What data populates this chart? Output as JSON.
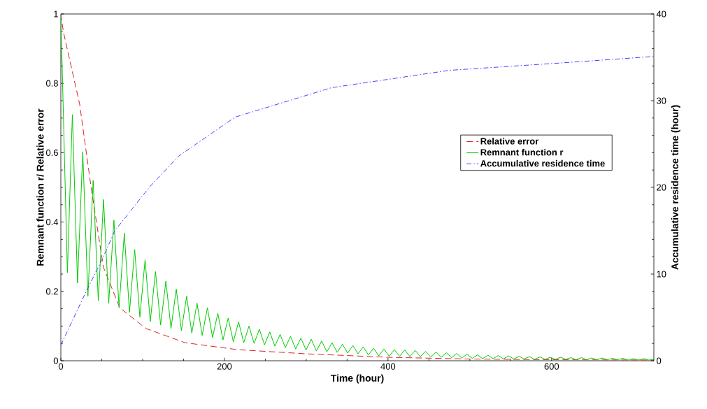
{
  "chart_data": {
    "type": "line",
    "xlabel": "Time (hour)",
    "ylabel": "Remnant function r/ Relative error",
    "y2label": "Accumulative residence time (hour)",
    "xlim": [
      0,
      725
    ],
    "xticks": [
      0,
      200,
      400,
      600
    ],
    "ylim": [
      0,
      1
    ],
    "yticks": [
      0,
      0.2,
      0.4,
      0.6,
      0.8,
      1
    ],
    "y2lim": [
      0,
      40
    ],
    "y2ticks": [
      0,
      10,
      20,
      30,
      40
    ],
    "legend": "right",
    "grid": false,
    "marker": "none",
    "series": [
      {
        "name": "Relative error",
        "color": "#dd2222",
        "line_style": "dashed",
        "x": [
          0,
          3,
          23,
          37,
          52,
          72,
          104,
          152,
          216,
          300,
          400,
          500,
          600,
          725
        ],
        "values": [
          1,
          0.95,
          0.74,
          0.5,
          0.27,
          0.153,
          0.093,
          0.052,
          0.032,
          0.02,
          0.01,
          0.005,
          0.003,
          0.002
        ]
      },
      {
        "name": "Remnant function r",
        "color": "#00cc00",
        "line_style": "solid",
        "x": [
          0,
          8,
          14.1,
          20.4,
          26.8,
          33.1,
          39.5,
          45.8,
          52.2,
          58.5,
          64.9,
          71.2,
          77.6,
          83.9,
          90.3,
          96.6,
          103,
          109.3,
          115.7,
          122,
          128.4,
          134.7,
          141.1,
          147.4,
          153.8,
          160.1,
          166.5,
          172.8,
          179.2,
          185.5,
          191.9,
          198.2,
          204.6,
          210.9,
          217.3,
          223.6,
          230,
          236.3,
          242.7,
          249,
          255.4,
          261.7,
          268.1,
          274.4,
          280.8,
          287.1,
          293.5,
          299.8,
          306.2,
          312.5,
          318.9,
          325.2,
          331.6,
          337.9,
          344.3,
          350.6,
          357,
          363.3,
          369.7,
          376,
          382.4,
          388.7,
          395.1,
          401.4,
          407.8,
          414.1,
          420.5,
          426.8,
          433.2,
          439.5,
          445.9,
          452.2,
          458.6,
          464.9,
          471.3,
          477.6,
          484,
          490.3,
          496.7,
          503,
          509.4,
          515.7,
          522.1,
          528.4,
          534.8,
          541.1,
          547.5,
          553.8,
          560.2,
          566.5,
          572.9,
          579.2,
          585.6,
          591.9,
          598.3,
          604.6,
          611,
          617.3,
          623.7,
          630,
          636.4,
          642.7,
          649.1,
          655.4,
          661.8,
          668.1,
          674.5,
          680.8,
          687.2,
          693.5,
          699.9,
          706.2,
          712.6,
          718.9,
          725
        ],
        "values": [
          1,
          0.254,
          0.71,
          0.224,
          0.603,
          0.186,
          0.52,
          0.173,
          0.465,
          0.166,
          0.405,
          0.153,
          0.368,
          0.14,
          0.321,
          0.126,
          0.291,
          0.113,
          0.257,
          0.103,
          0.23,
          0.093,
          0.207,
          0.087,
          0.186,
          0.08,
          0.166,
          0.073,
          0.153,
          0.067,
          0.137,
          0.06,
          0.123,
          0.055,
          0.112,
          0.052,
          0.1,
          0.05,
          0.091,
          0.046,
          0.083,
          0.042,
          0.076,
          0.038,
          0.07,
          0.034,
          0.065,
          0.031,
          0.062,
          0.028,
          0.057,
          0.026,
          0.052,
          0.024,
          0.048,
          0.022,
          0.044,
          0.02,
          0.04,
          0.017,
          0.036,
          0.014,
          0.034,
          0.013,
          0.032,
          0.013,
          0.031,
          0.012,
          0.03,
          0.012,
          0.027,
          0.011,
          0.025,
          0.01,
          0.023,
          0.009,
          0.021,
          0.008,
          0.019,
          0.007,
          0.017,
          0.006,
          0.016,
          0.006,
          0.015,
          0.005,
          0.014,
          0.005,
          0.013,
          0.005,
          0.012,
          0.004,
          0.011,
          0.004,
          0.01,
          0.004,
          0.01,
          0.004,
          0.009,
          0.003,
          0.009,
          0.003,
          0.008,
          0.003,
          0.008,
          0.003,
          0.007,
          0.003,
          0.007,
          0.002,
          0.006,
          0.002,
          0.006,
          0.002,
          0.004
        ]
      },
      {
        "name": "Accumulative residence time",
        "color": "#4444ff",
        "line_style": "dashdot",
        "axis": "y2",
        "x": [
          0,
          11,
          31,
          52,
          66,
          109,
          144,
          213,
          331,
          475,
          619,
          725
        ],
        "values": [
          1.8,
          4.0,
          8.0,
          12.0,
          15.0,
          20.1,
          23.6,
          28.1,
          31.5,
          33.5,
          34.4,
          35.1
        ]
      }
    ]
  }
}
